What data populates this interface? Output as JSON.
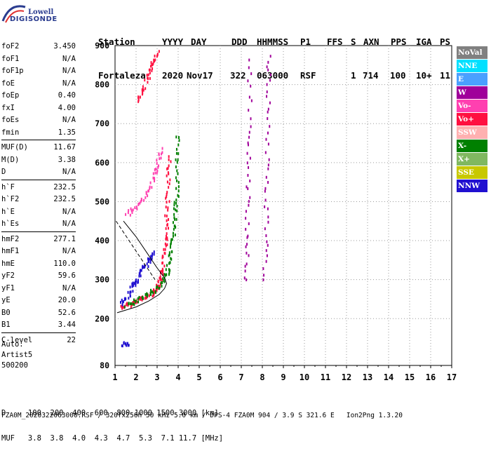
{
  "logo": {
    "line1": "Lowell",
    "line2": "DIGISONDE"
  },
  "header": {
    "labels": [
      "Station",
      "YYYY",
      "DAY",
      "DDD",
      "HHMMSS",
      "P1",
      "FFS",
      "S",
      "AXN",
      "PPS",
      "IGA",
      "PS"
    ],
    "values": [
      "Fortaleza",
      "2020",
      "Nov17",
      "322",
      "063000",
      "RSF",
      "1",
      "714",
      "100",
      "10+",
      "11"
    ]
  },
  "params": {
    "group1": [
      {
        "name": "foF2",
        "value": "3.450"
      },
      {
        "name": "foF1",
        "value": "N/A"
      },
      {
        "name": "foF1p",
        "value": "N/A"
      },
      {
        "name": "foE",
        "value": "N/A"
      },
      {
        "name": "foEp",
        "value": "0.40"
      },
      {
        "name": "fxI",
        "value": "4.00"
      },
      {
        "name": "foEs",
        "value": "N/A"
      },
      {
        "name": "fmin",
        "value": "1.35"
      }
    ],
    "group2": [
      {
        "name": "MUF(D)",
        "value": "11.67"
      },
      {
        "name": "M(D)",
        "value": "3.38"
      },
      {
        "name": "D",
        "value": "N/A"
      }
    ],
    "group3": [
      {
        "name": "h`F",
        "value": "232.5"
      },
      {
        "name": "h`F2",
        "value": "232.5"
      },
      {
        "name": "h`E",
        "value": "N/A"
      },
      {
        "name": "h`Es",
        "value": "N/A"
      }
    ],
    "group4": [
      {
        "name": "hmF2",
        "value": "277.1"
      },
      {
        "name": "hmF1",
        "value": "N/A"
      },
      {
        "name": "hmE",
        "value": "110.0"
      },
      {
        "name": "yF2",
        "value": "59.6"
      },
      {
        "name": "yF1",
        "value": "N/A"
      },
      {
        "name": "yE",
        "value": "20.0"
      },
      {
        "name": "B0",
        "value": "52.6"
      },
      {
        "name": "B1",
        "value": "3.44"
      }
    ],
    "group5": [
      {
        "name": "C-level",
        "value": "22"
      }
    ]
  },
  "auto": {
    "line1": "Auto:",
    "line2": "Artist5",
    "line3": "500200"
  },
  "chart_data": {
    "type": "scatter",
    "xlim": [
      1,
      17
    ],
    "ylim": [
      80,
      900
    ],
    "xticks": [
      "1",
      "2",
      "3",
      "4",
      "5",
      "6",
      "7",
      "8",
      "9",
      "10",
      "11",
      "12",
      "13",
      "14",
      "15",
      "16",
      "17"
    ],
    "yticks": [
      "80",
      "200",
      "300",
      "400",
      "500",
      "600",
      "700",
      "800",
      "900"
    ],
    "grid": true,
    "legend_position": "right",
    "legend": [
      {
        "label": "NoVal",
        "color": "#808080"
      },
      {
        "label": "NNE",
        "color": "#00e0ff"
      },
      {
        "label": "E",
        "color": "#4aa0ff"
      },
      {
        "label": "W",
        "color": "#a0009a"
      },
      {
        "label": "Vo-",
        "color": "#ff40b0"
      },
      {
        "label": "Vo+",
        "color": "#ff1040"
      },
      {
        "label": "SSW",
        "color": "#ffb0b0"
      },
      {
        "label": "X-",
        "color": "#008000"
      },
      {
        "label": "X+",
        "color": "#80b860"
      },
      {
        "label": "SSE",
        "color": "#c8c800"
      },
      {
        "label": "NNW",
        "color": "#2010d0"
      }
    ],
    "profile_curve": [
      [
        1.1,
        215
      ],
      [
        2.0,
        230
      ],
      [
        2.6,
        245
      ],
      [
        3.1,
        262
      ],
      [
        3.35,
        277
      ],
      [
        3.45,
        290
      ],
      [
        3.35,
        305
      ],
      [
        3.0,
        330
      ],
      [
        2.5,
        370
      ],
      [
        2.0,
        410
      ],
      [
        1.4,
        450
      ]
    ],
    "traces": [
      {
        "color": "#ff1040",
        "points": [
          [
            1.3,
            232
          ],
          [
            1.6,
            238
          ],
          [
            2.0,
            248
          ],
          [
            2.4,
            258
          ],
          [
            2.8,
            270
          ],
          [
            3.0,
            282
          ],
          [
            3.15,
            300
          ],
          [
            3.25,
            330
          ],
          [
            3.35,
            380
          ],
          [
            3.4,
            430
          ],
          [
            3.45,
            490
          ],
          [
            3.5,
            560
          ],
          [
            3.55,
            620
          ]
        ]
      },
      {
        "color": "#008000",
        "points": [
          [
            1.5,
            236
          ],
          [
            2.0,
            250
          ],
          [
            2.5,
            265
          ],
          [
            3.0,
            280
          ],
          [
            3.3,
            300
          ],
          [
            3.5,
            330
          ],
          [
            3.65,
            370
          ],
          [
            3.75,
            420
          ],
          [
            3.85,
            470
          ],
          [
            3.9,
            520
          ],
          [
            3.95,
            600
          ],
          [
            3.95,
            680
          ]
        ]
      },
      {
        "color": "#2010d0",
        "points": [
          [
            1.3,
            240
          ],
          [
            1.6,
            260
          ],
          [
            1.8,
            290
          ],
          [
            2.0,
            300
          ],
          [
            2.3,
            330
          ],
          [
            2.6,
            350
          ],
          [
            2.8,
            380
          ]
        ]
      },
      {
        "color": "#ff40b0",
        "points": [
          [
            1.5,
            470
          ],
          [
            2.0,
            490
          ],
          [
            2.5,
            520
          ],
          [
            2.8,
            560
          ],
          [
            3.0,
            600
          ],
          [
            3.2,
            640
          ]
        ]
      },
      {
        "color": "#ff1040",
        "points": [
          [
            2.0,
            760
          ],
          [
            2.3,
            790
          ],
          [
            2.6,
            830
          ],
          [
            2.8,
            860
          ],
          [
            3.0,
            890
          ]
        ]
      },
      {
        "color": "#a0009a",
        "points": [
          [
            7.2,
            300
          ],
          [
            7.25,
            420
          ],
          [
            7.3,
            560
          ],
          [
            7.35,
            700
          ],
          [
            7.4,
            890
          ]
        ]
      },
      {
        "color": "#a0009a",
        "points": [
          [
            8.1,
            300
          ],
          [
            8.15,
            450
          ],
          [
            8.2,
            600
          ],
          [
            8.25,
            760
          ],
          [
            8.3,
            890
          ]
        ]
      },
      {
        "color": "#2010d0",
        "points": [
          [
            1.3,
            138
          ],
          [
            1.6,
            137
          ]
        ]
      }
    ]
  },
  "footer": {
    "d_row": "D     100  200  400  600  800 1000 1500 3000 [km]",
    "muf_row": "MUF   3.8  3.8  4.0  4.3  4.7  5.3  7.1 11.7 [MHz]",
    "file_line": "FZA0M_2020322063000.RSF / 320fx256h 50 kHz 5.0 km / DPS-4 FZA0M 904 / 3.9 S 321.6 E   Ion2Png 1.3.20"
  }
}
